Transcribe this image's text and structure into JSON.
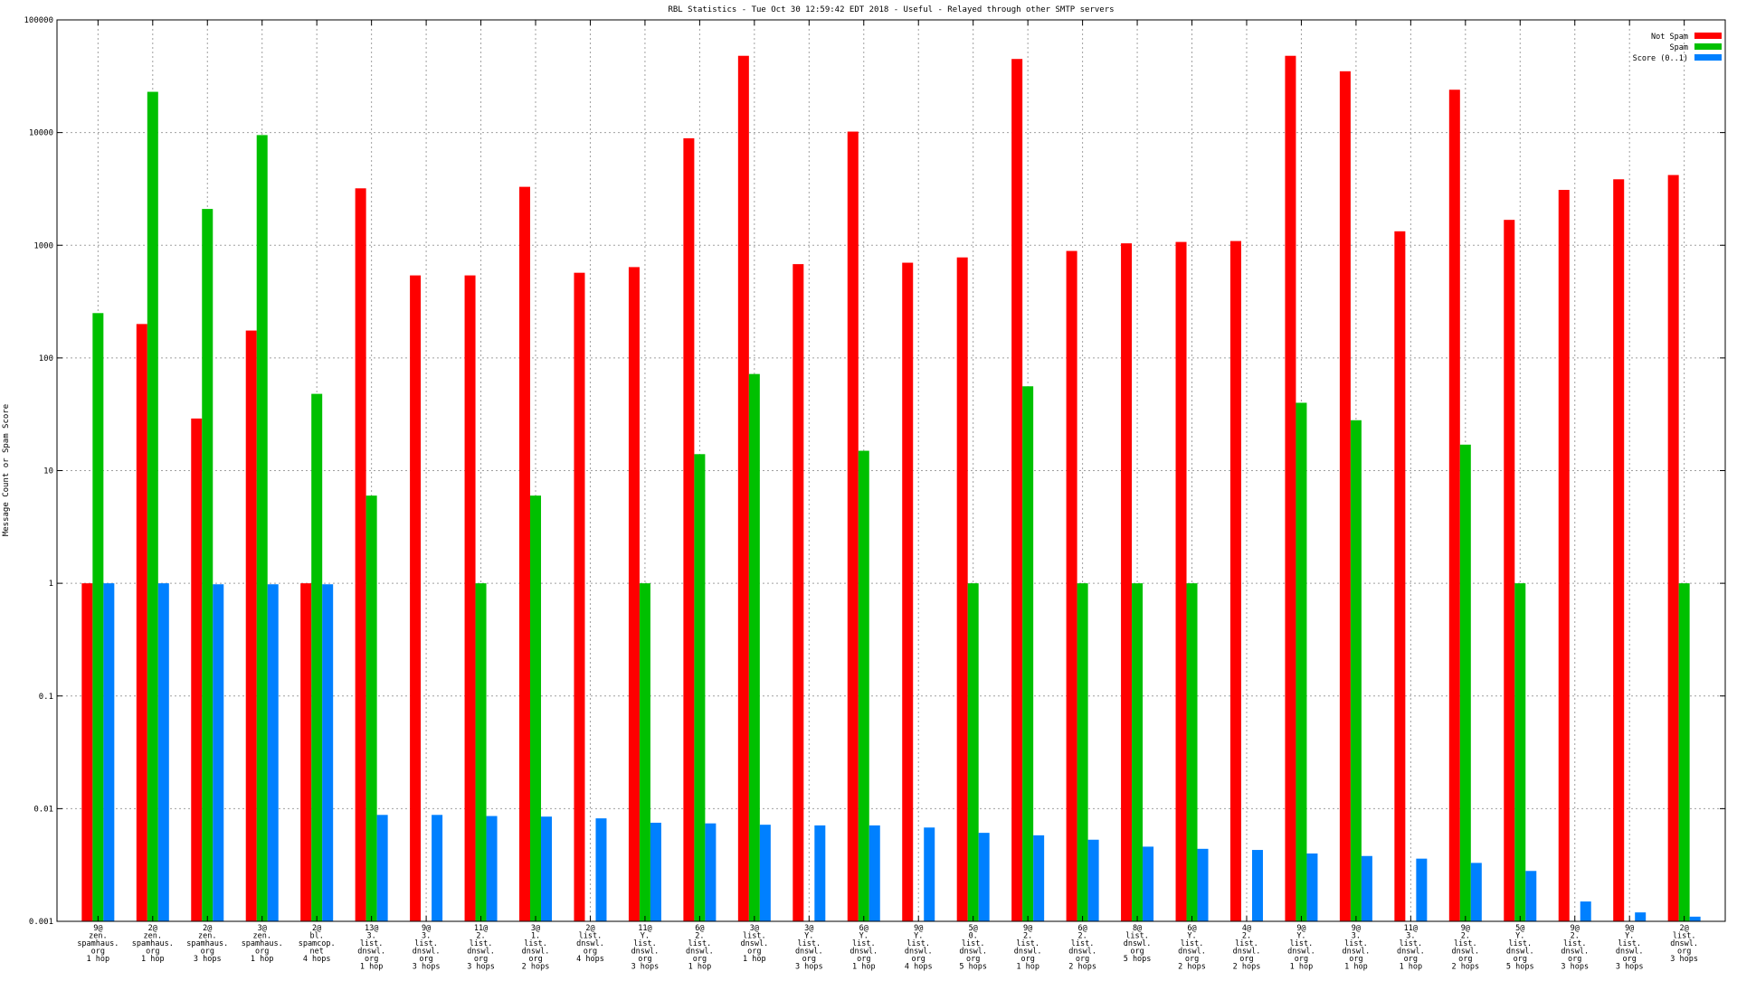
{
  "chart_data": {
    "type": "bar",
    "title": "RBL Statistics - Tue Oct 30 12:59:42 EDT 2018 - Useful - Relayed through other SMTP servers",
    "xlabel": "",
    "ylabel": "Message Count or Spam Score",
    "yscale": "log",
    "ylim": [
      0.001,
      100000
    ],
    "grid": true,
    "legend_position": "top-right",
    "y_ticks": [
      "100000",
      "10000",
      "1000",
      "100",
      "10",
      "1",
      "0.1",
      "0.01",
      "0.001"
    ],
    "y_tick_values": [
      100000,
      10000,
      1000,
      100,
      10,
      1,
      0.1,
      0.01,
      0.001
    ],
    "categories": [
      [
        "9@",
        "zen.",
        "spamhaus.",
        "org",
        "1 hop"
      ],
      [
        "2@",
        "zen.",
        "spamhaus.",
        "org",
        "1 hop"
      ],
      [
        "2@",
        "zen.",
        "spamhaus.",
        "org",
        "3 hops"
      ],
      [
        "3@",
        "zen.",
        "spamhaus.",
        "org",
        "1 hop"
      ],
      [
        "2@",
        "bl.",
        "spamcop.",
        "net",
        "4 hops"
      ],
      [
        "13@",
        "3.",
        "list.",
        "dnswl.",
        "org",
        "1 hop"
      ],
      [
        "9@",
        "3.",
        "list.",
        "dnswl.",
        "org",
        "3 hops"
      ],
      [
        "11@",
        "2.",
        "list.",
        "dnswl.",
        "org",
        "3 hops"
      ],
      [
        "3@",
        "1.",
        "list.",
        "dnswl.",
        "org",
        "2 hops"
      ],
      [
        "2@",
        "list.",
        "dnswl.",
        "org",
        "4 hops"
      ],
      [
        "11@",
        "Y.",
        "list.",
        "dnswl.",
        "org",
        "3 hops"
      ],
      [
        "6@",
        "2.",
        "list.",
        "dnswl.",
        "org",
        "1 hop"
      ],
      [
        "3@",
        "list.",
        "dnswl.",
        "org",
        "1 hop"
      ],
      [
        "3@",
        "Y.",
        "list.",
        "dnswl.",
        "org",
        "3 hops"
      ],
      [
        "6@",
        "Y.",
        "list.",
        "dnswl.",
        "org",
        "1 hop"
      ],
      [
        "9@",
        "Y.",
        "list.",
        "dnswl.",
        "org",
        "4 hops"
      ],
      [
        "5@",
        "0.",
        "list.",
        "dnswl.",
        "org",
        "5 hops"
      ],
      [
        "9@",
        "2.",
        "list.",
        "dnswl.",
        "org",
        "1 hop"
      ],
      [
        "6@",
        "2.",
        "list.",
        "dnswl.",
        "org",
        "2 hops"
      ],
      [
        "8@",
        "list.",
        "dnswl.",
        "org",
        "5 hops"
      ],
      [
        "6@",
        "Y.",
        "list.",
        "dnswl.",
        "org",
        "2 hops"
      ],
      [
        "4@",
        "2.",
        "list.",
        "dnswl.",
        "org",
        "2 hops"
      ],
      [
        "9@",
        "Y.",
        "list.",
        "dnswl.",
        "org",
        "1 hop"
      ],
      [
        "9@",
        "3.",
        "list.",
        "dnswl.",
        "org",
        "1 hop"
      ],
      [
        "11@",
        "3.",
        "list.",
        "dnswl.",
        "org",
        "1 hop"
      ],
      [
        "9@",
        "2.",
        "list.",
        "dnswl.",
        "org",
        "2 hops"
      ],
      [
        "5@",
        "Y.",
        "list.",
        "dnswl.",
        "org",
        "5 hops"
      ],
      [
        "9@",
        "2.",
        "list.",
        "dnswl.",
        "org",
        "3 hops"
      ],
      [
        "9@",
        "Y.",
        "list.",
        "dnswl.",
        "org",
        "3 hops"
      ],
      [
        "2@",
        "list.",
        "dnswl.",
        "org",
        "3 hops"
      ]
    ],
    "series": [
      {
        "name": "Not Spam",
        "color": "#ff0000",
        "values": [
          1,
          200,
          29,
          175,
          1,
          3200,
          540,
          540,
          3300,
          570,
          640,
          8900,
          48000,
          680,
          10200,
          700,
          780,
          45000,
          890,
          1040,
          1070,
          1090,
          48000,
          35000,
          1330,
          24000,
          1680,
          3100,
          3850,
          4200
        ]
      },
      {
        "name": "Spam",
        "color": "#00c000",
        "values": [
          250,
          23000,
          2100,
          9500,
          48,
          6,
          null,
          1,
          6,
          null,
          1,
          14,
          72,
          null,
          15,
          null,
          1,
          56,
          1,
          1,
          1,
          null,
          40,
          28,
          null,
          17,
          1,
          null,
          null,
          1
        ]
      },
      {
        "name": "Score (0..1)",
        "color": "#0080ff",
        "values": [
          1,
          1,
          0.98,
          0.98,
          0.98,
          0.0088,
          0.0088,
          0.0086,
          0.0085,
          0.0082,
          0.0075,
          0.0074,
          0.0072,
          0.0071,
          0.0071,
          0.0068,
          0.0061,
          0.0058,
          0.0053,
          0.0046,
          0.0044,
          0.0043,
          0.004,
          0.0038,
          0.0036,
          0.0033,
          0.0028,
          0.0015,
          0.0012,
          0.0011
        ]
      }
    ]
  }
}
